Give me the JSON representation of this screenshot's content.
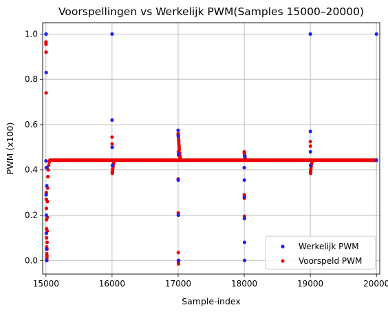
{
  "chart_data": {
    "type": "scatter",
    "title": "Voorspellingen vs Werkelijk PWM(Samples 15000–20000)",
    "xlabel": "Sample-index",
    "ylabel": "PWM (x100)",
    "xlim": [
      14950,
      20050
    ],
    "ylim": [
      -0.06,
      1.05
    ],
    "xticks": [
      15000,
      16000,
      17000,
      18000,
      19000,
      20000
    ],
    "yticks": [
      0.0,
      0.2,
      0.4,
      0.6,
      0.8,
      1.0
    ],
    "ytick_labels": [
      "0.0",
      "0.2",
      "0.4",
      "0.6",
      "0.8",
      "1.0"
    ],
    "grid": true,
    "legend_position": "bottom-right",
    "series": [
      {
        "name": "Werkelijk PWM",
        "color": "#1f1fff",
        "points": [
          [
            15000,
            1.0
          ],
          [
            15002,
            1.0
          ],
          [
            15004,
            0.83
          ],
          [
            15001,
            0.44
          ],
          [
            15003,
            0.29
          ],
          [
            15005,
            0.2
          ],
          [
            15006,
            0.12
          ],
          [
            15008,
            0.05
          ],
          [
            15010,
            0.0
          ],
          [
            15012,
            0.33
          ],
          [
            15015,
            0.41
          ],
          [
            16000,
            1.0
          ],
          [
            16000,
            0.62
          ],
          [
            16002,
            0.5
          ],
          [
            16005,
            0.42
          ],
          [
            17000,
            0.575
          ],
          [
            17002,
            0.55
          ],
          [
            17001,
            0.355
          ],
          [
            17003,
            0.2
          ],
          [
            17004,
            0.0
          ],
          [
            17008,
            0.47
          ],
          [
            18000,
            0.41
          ],
          [
            18001,
            0.355
          ],
          [
            18002,
            0.28
          ],
          [
            18003,
            0.185
          ],
          [
            18004,
            0.08
          ],
          [
            18005,
            0.0
          ],
          [
            18010,
            0.46
          ],
          [
            19000,
            1.0
          ],
          [
            19001,
            0.57
          ],
          [
            19002,
            0.48
          ],
          [
            19004,
            0.42
          ],
          [
            20000,
            1.0
          ],
          [
            20000,
            0.443
          ]
        ]
      },
      {
        "name": "Voorspeld PWM",
        "color": "#ee0000",
        "points": [
          [
            15000,
            0.965
          ],
          [
            15001,
            0.955
          ],
          [
            15002,
            0.92
          ],
          [
            15003,
            0.74
          ],
          [
            15004,
            0.41
          ],
          [
            15005,
            0.3
          ],
          [
            15006,
            0.27
          ],
          [
            15007,
            0.23
          ],
          [
            15008,
            0.18
          ],
          [
            15009,
            0.14
          ],
          [
            15010,
            0.1
          ],
          [
            15011,
            0.06
          ],
          [
            15012,
            0.03
          ],
          [
            15013,
            0.01
          ],
          [
            15014,
            0.0
          ],
          [
            15015,
            0.02
          ],
          [
            15016,
            0.05
          ],
          [
            15017,
            0.08
          ],
          [
            15018,
            0.13
          ],
          [
            15020,
            0.19
          ],
          [
            15022,
            0.26
          ],
          [
            15025,
            0.32
          ],
          [
            15030,
            0.37
          ],
          [
            15035,
            0.4
          ],
          [
            15040,
            0.42
          ],
          [
            15050,
            0.435
          ],
          [
            15070,
            0.442
          ],
          [
            16000,
            0.545
          ],
          [
            16001,
            0.515
          ],
          [
            16002,
            0.5
          ],
          [
            16003,
            0.39
          ],
          [
            16004,
            0.385
          ],
          [
            16006,
            0.395
          ],
          [
            16010,
            0.405
          ],
          [
            16015,
            0.415
          ],
          [
            16020,
            0.425
          ],
          [
            16030,
            0.435
          ],
          [
            17000,
            0.56
          ],
          [
            17002,
            0.555
          ],
          [
            17004,
            0.55
          ],
          [
            17006,
            0.54
          ],
          [
            17008,
            0.53
          ],
          [
            17010,
            0.52
          ],
          [
            17012,
            0.51
          ],
          [
            17015,
            0.5
          ],
          [
            17018,
            0.49
          ],
          [
            17022,
            0.475
          ],
          [
            17026,
            0.465
          ],
          [
            17030,
            0.455
          ],
          [
            17040,
            0.445
          ],
          [
            17001,
            0.36
          ],
          [
            17002,
            0.21
          ],
          [
            17003,
            0.035
          ],
          [
            17004,
            0.0
          ],
          [
            17005,
            -0.01
          ],
          [
            17006,
            -0.015
          ],
          [
            17008,
            0.0
          ],
          [
            17003,
            0.48
          ],
          [
            17006,
            0.465
          ],
          [
            18000,
            0.48
          ],
          [
            18002,
            0.475
          ],
          [
            18004,
            0.47
          ],
          [
            18006,
            0.465
          ],
          [
            18008,
            0.46
          ],
          [
            18010,
            0.455
          ],
          [
            18015,
            0.45
          ],
          [
            18020,
            0.445
          ],
          [
            18001,
            0.29
          ],
          [
            18002,
            0.275
          ],
          [
            18003,
            0.195
          ],
          [
            19000,
            0.525
          ],
          [
            19001,
            0.505
          ],
          [
            19002,
            0.39
          ],
          [
            19003,
            0.385
          ],
          [
            19005,
            0.395
          ],
          [
            19008,
            0.405
          ],
          [
            19012,
            0.415
          ],
          [
            19018,
            0.425
          ],
          [
            19025,
            0.435
          ],
          [
            19035,
            0.44
          ],
          [
            20000,
            0.443
          ]
        ]
      }
    ],
    "baseline": {
      "series": "Voorspeld PWM",
      "y": 0.443,
      "x_range": [
        15060,
        20000
      ]
    }
  }
}
